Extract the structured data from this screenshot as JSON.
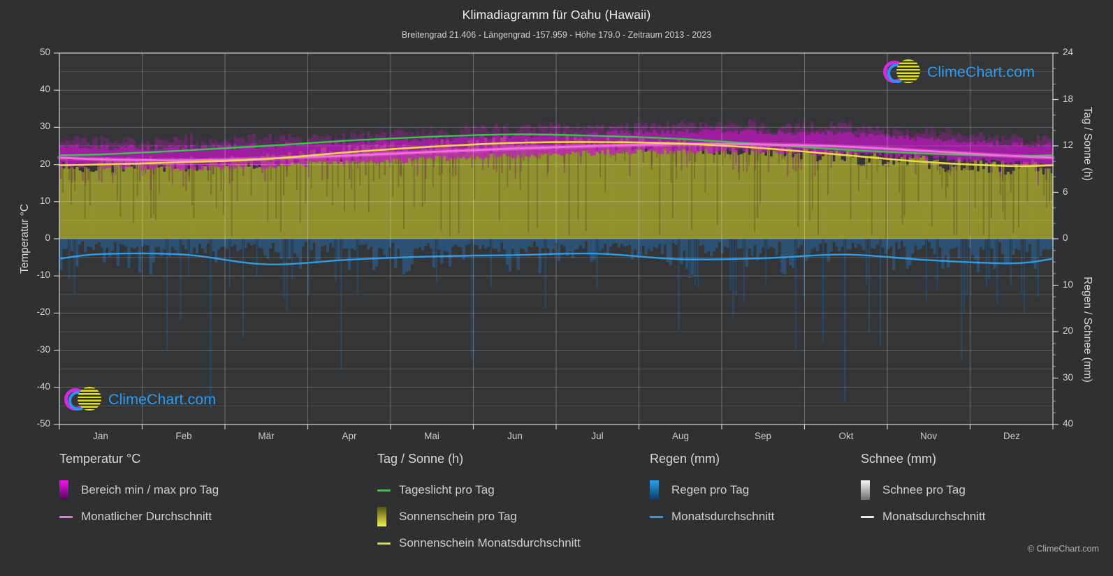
{
  "header": {
    "title": "Klimadiagramm für Oahu (Hawaii)",
    "subtitle": "Breitengrad 21.406 - Längengrad -157.959 - Höhe 179.0 - Zeitraum 2013 - 2023"
  },
  "watermark": {
    "text": "ClimeChart.com"
  },
  "footer": {
    "copyright": "© ClimeChart.com"
  },
  "colors": {
    "background": "#2f3032",
    "plot_background": "#343537",
    "grid": "#ffffff",
    "axis_text": "#d2d2d2",
    "temp_band": "#c418c4",
    "temp_avg_line": "#f36fe0",
    "daylight_line": "#2ecc40",
    "sunshine_fill": "#96962e",
    "sunshine_avg_line": "#ead943",
    "rain_bar": "#266cac",
    "rain_avg_line": "#2f9ce8",
    "snow_bar": "#d9d9d9",
    "snow_avg_line": "#e8e8e8",
    "logo_text": "#2b9cf2"
  },
  "axes": {
    "left": {
      "title": "Temperatur °C",
      "ticks": [
        50,
        40,
        30,
        20,
        10,
        0,
        -10,
        -20,
        -30,
        -40,
        -50
      ],
      "range": [
        -50,
        50
      ]
    },
    "right_sun": {
      "title": "Tag / Sonne (h)",
      "ticks": [
        24,
        18,
        12,
        6,
        0
      ],
      "range": [
        0,
        24
      ]
    },
    "right_precip": {
      "title": "Regen / Schnee (mm)",
      "ticks": [
        10,
        20,
        30,
        40
      ],
      "range": [
        0,
        40
      ]
    },
    "x": {
      "months": [
        "Jan",
        "Feb",
        "Mär",
        "Apr",
        "Mai",
        "Jun",
        "Jul",
        "Aug",
        "Sep",
        "Okt",
        "Nov",
        "Dez"
      ]
    }
  },
  "legend": {
    "position": "bottom",
    "groups": [
      {
        "title": "Temperatur °C",
        "items": [
          {
            "swatch": "gradient",
            "from": "#f015f0",
            "to": "#4e0852",
            "label": "Bereich min / max pro Tag"
          },
          {
            "swatch": "line",
            "color": "#f36fe0",
            "label": "Monatlicher Durchschnitt"
          }
        ]
      },
      {
        "title": "Tag / Sonne (h)",
        "items": [
          {
            "swatch": "line",
            "color": "#2ecc40",
            "label": "Tageslicht pro Tag"
          },
          {
            "swatch": "gradient",
            "from": "#55551a",
            "to": "#f0ee4a",
            "label": "Sonnenschein pro Tag"
          },
          {
            "swatch": "line",
            "color": "#d8d838",
            "label": "Sonnenschein Monatsdurchschnitt"
          }
        ]
      },
      {
        "title": "Regen (mm)",
        "items": [
          {
            "swatch": "gradient",
            "from": "#2da0e8",
            "to": "#0b3a63",
            "label": "Regen pro Tag"
          },
          {
            "swatch": "line",
            "color": "#2f9ce8",
            "label": "Monatsdurchschnitt"
          }
        ]
      },
      {
        "title": "Schnee (mm)",
        "items": [
          {
            "swatch": "gradient",
            "from": "#f5f5f5",
            "to": "#6f6f6f",
            "label": "Schnee pro Tag"
          },
          {
            "swatch": "line",
            "color": "#e8e8e8",
            "label": "Monatsdurchschnitt"
          }
        ]
      }
    ]
  },
  "chart_data": {
    "type": "line",
    "title": "Klimadiagramm für Oahu (Hawaii)",
    "x_categories": [
      "Jan",
      "Feb",
      "Mär",
      "Apr",
      "Mai",
      "Jun",
      "Jul",
      "Aug",
      "Sep",
      "Okt",
      "Nov",
      "Dez"
    ],
    "ylim_temperature_c": [
      -50,
      50
    ],
    "ylim_sun_hours": [
      0,
      24
    ],
    "ylim_precip_mm": [
      0,
      40
    ],
    "grid": true,
    "legend_position": "bottom",
    "series": [
      {
        "name": "Bereich min / max pro Tag",
        "type": "band",
        "axis": "temperature_c",
        "color": "#c418c4",
        "min": [
          19.4,
          19.1,
          19.7,
          20.5,
          21.5,
          22.5,
          23.2,
          23.7,
          23.6,
          23.0,
          21.8,
          20.5
        ],
        "max": [
          24.7,
          24.5,
          25.1,
          25.9,
          26.9,
          27.8,
          28.4,
          28.9,
          28.8,
          28.1,
          26.8,
          25.5
        ]
      },
      {
        "name": "Monatlicher Durchschnitt (Temperatur)",
        "type": "line",
        "axis": "temperature_c",
        "color": "#f36fe0",
        "values": [
          21.4,
          21.1,
          21.6,
          22.4,
          23.4,
          24.3,
          25.0,
          25.5,
          25.4,
          24.8,
          23.6,
          22.3
        ]
      },
      {
        "name": "Tageslicht pro Tag",
        "type": "line",
        "axis": "sun_hours",
        "color": "#2ecc40",
        "values": [
          10.9,
          11.4,
          12.0,
          12.7,
          13.2,
          13.5,
          13.3,
          12.9,
          12.2,
          11.5,
          11.0,
          10.7
        ]
      },
      {
        "name": "Sonnenschein pro Tag",
        "type": "area",
        "axis": "sun_hours",
        "color": "#96962e",
        "values": [
          9.6,
          9.9,
          10.3,
          11.2,
          11.9,
          12.4,
          12.5,
          12.3,
          11.7,
          10.8,
          9.9,
          9.4
        ]
      },
      {
        "name": "Sonnenschein Monatsdurchschnitt",
        "type": "line",
        "axis": "sun_hours",
        "color": "#ead943",
        "values": [
          9.6,
          9.9,
          10.3,
          11.2,
          11.9,
          12.4,
          12.5,
          12.3,
          11.7,
          10.8,
          9.9,
          9.4
        ]
      },
      {
        "name": "Regen pro Tag",
        "type": "bar",
        "axis": "precip_mm",
        "color": "#266cac",
        "values": [
          3.3,
          3.4,
          5.5,
          4.5,
          3.8,
          3.5,
          3.2,
          4.4,
          4.2,
          3.4,
          4.6,
          5.3
        ]
      },
      {
        "name": "Monatsdurchschnitt (Regen)",
        "type": "line",
        "axis": "precip_mm",
        "color": "#2f9ce8",
        "values": [
          3.3,
          3.4,
          5.5,
          4.5,
          3.8,
          3.5,
          3.2,
          4.4,
          4.2,
          3.4,
          4.6,
          5.3
        ]
      },
      {
        "name": "Schnee pro Tag",
        "type": "bar",
        "axis": "precip_mm",
        "color": "#d9d9d9",
        "values": [
          0,
          0,
          0,
          0,
          0,
          0,
          0,
          0,
          0,
          0,
          0,
          0
        ]
      },
      {
        "name": "Monatsdurchschnitt (Schnee)",
        "type": "line",
        "axis": "precip_mm",
        "color": "#e8e8e8",
        "values": [
          0,
          0,
          0,
          0,
          0,
          0,
          0,
          0,
          0,
          0,
          0,
          0
        ]
      }
    ]
  }
}
